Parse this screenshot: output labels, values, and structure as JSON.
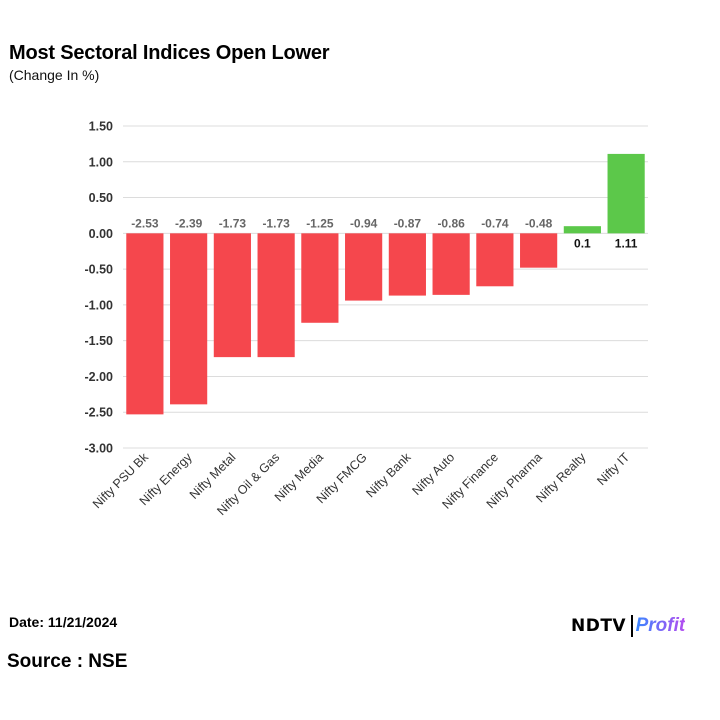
{
  "chart_data": {
    "type": "bar",
    "title": "Most Sectoral Indices Open Lower",
    "subtitle": "(Change In %)",
    "categories": [
      "Nifty PSU Bk",
      "Nifty Energy",
      "Nifty Metal",
      "Nifty Oil & Gas",
      "Nifty Media",
      "Nifty FMCG",
      "Nifty Bank",
      "Nifty Auto",
      "Nifty Finance",
      "Nifty Pharma",
      "Nifty Realty",
      "Nifty IT"
    ],
    "values": [
      -2.53,
      -2.39,
      -1.73,
      -1.73,
      -1.25,
      -0.94,
      -0.87,
      -0.86,
      -0.74,
      -0.48,
      0.1,
      1.11
    ],
    "data_labels": [
      "-2.53",
      "-2.39",
      "-1.73",
      "-1.73",
      "-1.25",
      "-0.94",
      "-0.87",
      "-0.86",
      "-0.74",
      "-0.48",
      "0.1",
      "1.11"
    ],
    "yticks": [
      "1.50",
      "1.00",
      "0.50",
      "0.00",
      "-0.50",
      "-1.00",
      "-1.50",
      "-2.00",
      "-2.50",
      "-3.00"
    ],
    "ylim": [
      -3.0,
      1.5
    ],
    "xlabel": "",
    "ylabel": "",
    "grid": true,
    "colors": {
      "negative": "#f5474d",
      "positive": "#5cc84a",
      "grid": "#dcdcdc",
      "neg_label": "#666666",
      "pos_label": "#111111"
    }
  },
  "footer": {
    "date": "Date: 11/21/2024",
    "source": "Source : NSE"
  },
  "brand": {
    "primary": "NDTV",
    "secondary": "Profit"
  }
}
